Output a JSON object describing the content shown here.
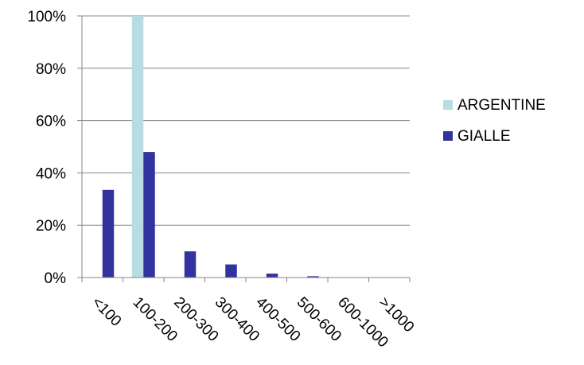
{
  "chart_data": {
    "type": "bar",
    "title": "",
    "xlabel": "",
    "ylabel": "",
    "categories": [
      "<100",
      "100-200",
      "200-300",
      "300-400",
      "400-500",
      "500-600",
      "600-1000",
      ">1000"
    ],
    "series": [
      {
        "name": "ARGENTINE",
        "color": "#b7dde3",
        "values": [
          0,
          100,
          0,
          0,
          0,
          0,
          0,
          0
        ]
      },
      {
        "name": "GIALLE",
        "color": "#3333a0",
        "values": [
          33.5,
          48,
          10,
          5,
          1.5,
          0.5,
          0,
          0
        ]
      }
    ],
    "ylim": [
      0,
      100
    ],
    "yticks": [
      "0%",
      "20%",
      "40%",
      "60%",
      "80%",
      "100%"
    ],
    "ytick_values": [
      0,
      20,
      40,
      60,
      80,
      100
    ],
    "grid": true,
    "legend_position": "right"
  }
}
